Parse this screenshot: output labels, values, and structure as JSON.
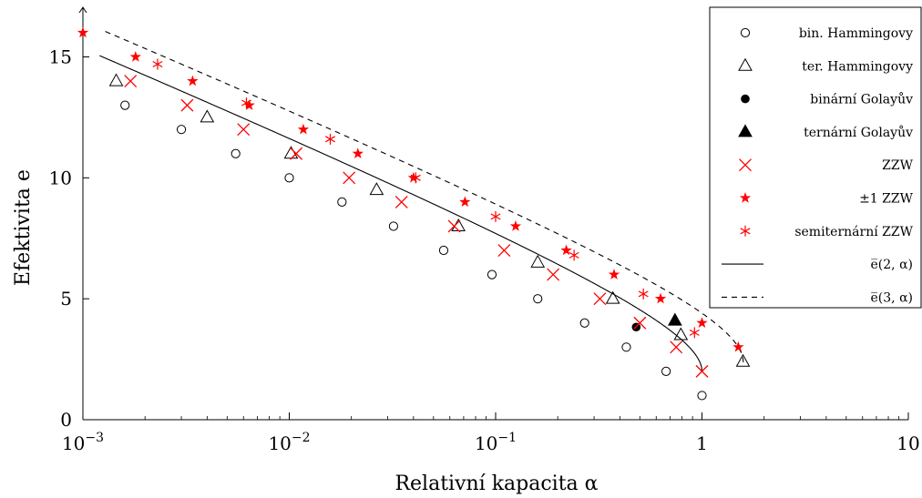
{
  "chart_data": {
    "type": "scatter",
    "xscale": "log",
    "xlim": [
      0.001,
      10
    ],
    "ylim": [
      0,
      16.5
    ],
    "xlabel": "Relativní kapacita α",
    "ylabel": "Efektivita e",
    "xticks": [
      {
        "value": 0.001,
        "base": "10",
        "exp": "−3"
      },
      {
        "value": 0.01,
        "base": "10",
        "exp": "−2"
      },
      {
        "value": 0.1,
        "base": "10",
        "exp": "−1"
      },
      {
        "value": 1,
        "base": "1",
        "exp": ""
      },
      {
        "value": 10,
        "base": "10",
        "exp": ""
      }
    ],
    "yticks": [
      0,
      5,
      10,
      15
    ],
    "grid": false,
    "legend_position": "top-right",
    "series": [
      {
        "name": "bin. Hammingovy",
        "marker": "circle-open",
        "color": "#000000",
        "points": [
          [
            0.0016,
            13
          ],
          [
            0.003,
            12
          ],
          [
            0.0055,
            11
          ],
          [
            0.01,
            10
          ],
          [
            0.018,
            9
          ],
          [
            0.032,
            8
          ],
          [
            0.056,
            7
          ],
          [
            0.096,
            6
          ],
          [
            0.16,
            5
          ],
          [
            0.27,
            4
          ],
          [
            0.43,
            3
          ],
          [
            0.67,
            2
          ],
          [
            1,
            1
          ]
        ]
      },
      {
        "name": "ter. Hammingovy",
        "marker": "triangle-open",
        "color": "#000000",
        "points": [
          [
            0.00145,
            14
          ],
          [
            0.004,
            12.5
          ],
          [
            0.0102,
            11
          ],
          [
            0.0265,
            9.5
          ],
          [
            0.066,
            8
          ],
          [
            0.16,
            6.5
          ],
          [
            0.37,
            5
          ],
          [
            0.79,
            3.5
          ],
          [
            1.58,
            2.4
          ]
        ]
      },
      {
        "name": "binární Golayův",
        "marker": "circle-filled",
        "color": "#000000",
        "points": [
          [
            0.48,
            3.83
          ]
        ]
      },
      {
        "name": "ternární Golayův",
        "marker": "triangle-filled",
        "color": "#000000",
        "points": [
          [
            0.74,
            4.1
          ]
        ]
      },
      {
        "name": "ZZW",
        "marker": "x",
        "color": "#ff0000",
        "points": [
          [
            0.0017,
            14
          ],
          [
            0.0032,
            13
          ],
          [
            0.006,
            12
          ],
          [
            0.0108,
            11
          ],
          [
            0.0195,
            10
          ],
          [
            0.035,
            9
          ],
          [
            0.063,
            8
          ],
          [
            0.11,
            7
          ],
          [
            0.19,
            6
          ],
          [
            0.32,
            5
          ],
          [
            0.5,
            4
          ],
          [
            0.75,
            3
          ],
          [
            1,
            2
          ]
        ]
      },
      {
        "name": "±1 ZZW",
        "marker": "star-5",
        "color": "#ff0000",
        "points": [
          [
            0.001,
            16
          ],
          [
            0.0018,
            15
          ],
          [
            0.0034,
            14
          ],
          [
            0.0064,
            13
          ],
          [
            0.0117,
            12
          ],
          [
            0.0215,
            11
          ],
          [
            0.04,
            10
          ],
          [
            0.071,
            9
          ],
          [
            0.125,
            8
          ],
          [
            0.22,
            7
          ],
          [
            0.375,
            6
          ],
          [
            0.63,
            5
          ],
          [
            1,
            4
          ],
          [
            1.5,
            3
          ]
        ]
      },
      {
        "name": "semiternární ZZW",
        "marker": "asterisk",
        "color": "#ff0000",
        "points": [
          [
            0.0023,
            14.7
          ],
          [
            0.0062,
            13.1
          ],
          [
            0.0158,
            11.6
          ],
          [
            0.041,
            10
          ],
          [
            0.1,
            8.4
          ],
          [
            0.24,
            6.8
          ],
          [
            0.52,
            5.2
          ],
          [
            0.92,
            3.6
          ]
        ]
      }
    ],
    "curves": [
      {
        "name": "e̅(2, α)",
        "style": "solid",
        "color": "#000000"
      },
      {
        "name": "e̅(3, α)",
        "style": "dashed",
        "color": "#000000"
      }
    ]
  }
}
